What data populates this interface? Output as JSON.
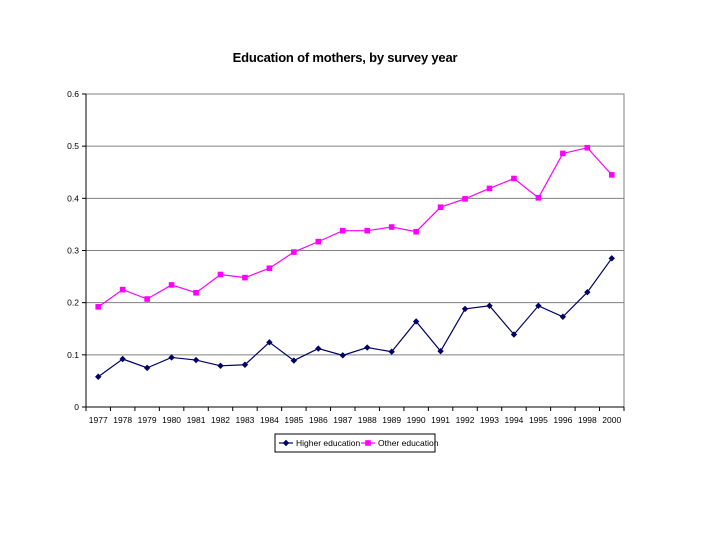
{
  "chart_data": {
    "type": "line",
    "title": "Education of mothers, by survey year",
    "xlabel": "",
    "ylabel": "",
    "categories": [
      "1977",
      "1978",
      "1979",
      "1980",
      "1981",
      "1982",
      "1983",
      "1984",
      "1985",
      "1986",
      "1987",
      "1988",
      "1989",
      "1990",
      "1991",
      "1992",
      "1993",
      "1994",
      "1995",
      "1996",
      "1998",
      "2000"
    ],
    "ylim": [
      0,
      0.6
    ],
    "yticks": [
      "0",
      "0.1",
      "0.2",
      "0.3",
      "0.4",
      "0.5",
      "0.6"
    ],
    "grid": true,
    "legend_position": "bottom",
    "series": [
      {
        "name": "Higher education",
        "color": "#000066",
        "marker": "diamond",
        "values": [
          0.058,
          0.092,
          0.075,
          0.095,
          0.09,
          0.079,
          0.081,
          0.124,
          0.089,
          0.112,
          0.099,
          0.114,
          0.106,
          0.164,
          0.107,
          0.188,
          0.194,
          0.139,
          0.194,
          0.173,
          0.22,
          0.285
        ]
      },
      {
        "name": "Other education",
        "color": "#ff00ff",
        "marker": "square",
        "values": [
          0.192,
          0.225,
          0.207,
          0.234,
          0.219,
          0.254,
          0.248,
          0.266,
          0.297,
          0.317,
          0.338,
          0.338,
          0.345,
          0.336,
          0.383,
          0.399,
          0.419,
          0.438,
          0.401,
          0.486,
          0.497,
          0.445
        ]
      }
    ]
  }
}
